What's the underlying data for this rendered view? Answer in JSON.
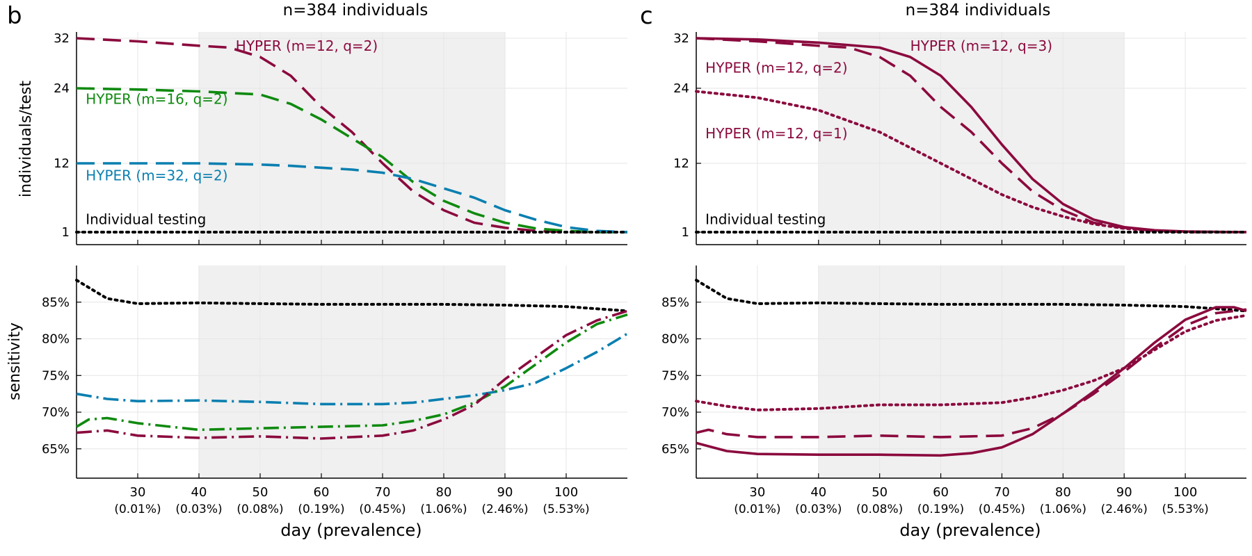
{
  "colors": {
    "red": "#8b0a3e",
    "green": "#0f8a0f",
    "blue": "#0a7fb0",
    "black": "#000000",
    "shade": "#f0f0f0",
    "grid": "#e6e6e6"
  },
  "panels": [
    {
      "letter": "b",
      "title": "n=384 individuals",
      "xlabel": "day (prevalence)"
    },
    {
      "letter": "c",
      "title": "n=384 individuals",
      "xlabel": "day (prevalence)"
    }
  ],
  "x_ticks": [
    {
      "day": 30,
      "label": "30",
      "sub": "(0.01%)"
    },
    {
      "day": 40,
      "label": "40",
      "sub": "(0.03%)"
    },
    {
      "day": 50,
      "label": "50",
      "sub": "(0.08%)"
    },
    {
      "day": 60,
      "label": "60",
      "sub": "(0.19%)"
    },
    {
      "day": 70,
      "label": "70",
      "sub": "(0.45%)"
    },
    {
      "day": 80,
      "label": "80",
      "sub": "(1.06%)"
    },
    {
      "day": 90,
      "label": "90",
      "sub": "(2.46%)"
    },
    {
      "day": 100,
      "label": "100",
      "sub": "(5.53%)"
    }
  ],
  "chart_data": [
    {
      "panel": "b-top",
      "type": "line",
      "ylabel": "individuals/test",
      "xlim": [
        20,
        110
      ],
      "ylim": [
        -1,
        33
      ],
      "yticks": [
        {
          "v": 1,
          "label": "1"
        },
        {
          "v": 12,
          "label": "12"
        },
        {
          "v": 24,
          "label": "24"
        },
        {
          "v": 32,
          "label": "32"
        }
      ],
      "shaded_x": [
        40,
        90
      ],
      "series": [
        {
          "name": "HYPER (m=12, q=2)",
          "color": "red",
          "dash": "long",
          "x": [
            20,
            30,
            40,
            45,
            50,
            55,
            60,
            65,
            70,
            75,
            80,
            85,
            90,
            95,
            100,
            105,
            110
          ],
          "y": [
            32,
            31.5,
            30.8,
            30.5,
            29,
            26,
            21,
            17,
            12,
            7.5,
            4.5,
            2.5,
            1.7,
            1.2,
            1.0,
            1.0,
            1.0
          ],
          "label_at": [
            46,
            30
          ]
        },
        {
          "name": "HYPER (m=16, q=2)",
          "color": "green",
          "dash": "long",
          "x": [
            20,
            30,
            40,
            50,
            55,
            60,
            65,
            70,
            75,
            80,
            85,
            90,
            95,
            100,
            105,
            110
          ],
          "y": [
            24,
            23.8,
            23.5,
            23,
            21.5,
            19,
            16,
            13,
            9,
            6,
            4,
            2.5,
            1.6,
            1.2,
            1.0,
            1.0
          ],
          "label_at": [
            21.5,
            21.5
          ]
        },
        {
          "name": "HYPER (m=32, q=2)",
          "color": "blue",
          "dash": "long",
          "x": [
            20,
            30,
            40,
            50,
            55,
            60,
            65,
            70,
            75,
            80,
            85,
            90,
            95,
            100,
            105,
            110
          ],
          "y": [
            12,
            12,
            12,
            11.8,
            11.6,
            11.3,
            11,
            10.5,
            9.5,
            8,
            6.5,
            4.5,
            3,
            1.8,
            1.2,
            1.0
          ],
          "label_at": [
            21.5,
            9.3
          ]
        },
        {
          "name": "Individual testing",
          "color": "black",
          "dash": "dot",
          "x": [
            20,
            110
          ],
          "y": [
            1,
            1
          ],
          "label_at": [
            21.5,
            2.3
          ]
        }
      ]
    },
    {
      "panel": "b-bottom",
      "type": "line",
      "ylabel": "sensitivity",
      "xlim": [
        20,
        110
      ],
      "ylim": [
        61,
        90
      ],
      "yticks": [
        {
          "v": 65,
          "label": "65%"
        },
        {
          "v": 70,
          "label": "70%"
        },
        {
          "v": 75,
          "label": "75%"
        },
        {
          "v": 80,
          "label": "80%"
        },
        {
          "v": 85,
          "label": "85%"
        }
      ],
      "shaded_x": [
        40,
        90
      ],
      "series": [
        {
          "name": "Individual testing",
          "color": "black",
          "dash": "dot",
          "x": [
            20,
            22,
            25,
            30,
            40,
            50,
            60,
            70,
            80,
            90,
            100,
            110
          ],
          "y": [
            88,
            87,
            85.5,
            84.8,
            84.9,
            84.8,
            84.7,
            84.7,
            84.7,
            84.6,
            84.4,
            83.8
          ]
        },
        {
          "name": "HYPER (m=32, q=2)",
          "color": "blue",
          "dash": "dashdot",
          "x": [
            20,
            25,
            30,
            40,
            50,
            60,
            70,
            75,
            80,
            85,
            90,
            95,
            100,
            105,
            110
          ],
          "y": [
            72.5,
            71.8,
            71.5,
            71.6,
            71.4,
            71.1,
            71.1,
            71.3,
            71.8,
            72.3,
            73,
            74,
            76,
            78.2,
            80.7
          ]
        },
        {
          "name": "HYPER (m=16, q=2)",
          "color": "green",
          "dash": "dashdot",
          "x": [
            20,
            22,
            25,
            30,
            40,
            50,
            60,
            70,
            75,
            80,
            85,
            90,
            95,
            100,
            105,
            110
          ],
          "y": [
            68,
            69,
            69.2,
            68.5,
            67.6,
            67.8,
            68,
            68.2,
            68.8,
            69.7,
            71.3,
            73.5,
            76.5,
            79.5,
            82,
            83.3
          ]
        },
        {
          "name": "HYPER (m=12, q=2)",
          "color": "red",
          "dash": "dashdot",
          "x": [
            20,
            25,
            30,
            40,
            50,
            60,
            70,
            75,
            80,
            85,
            90,
            95,
            100,
            105,
            110
          ],
          "y": [
            67.2,
            67.5,
            66.8,
            66.5,
            66.7,
            66.4,
            66.8,
            67.5,
            69,
            71,
            74.5,
            77.5,
            80.5,
            82.5,
            83.8
          ]
        }
      ]
    },
    {
      "panel": "c-top",
      "type": "line",
      "ylabel": "",
      "xlim": [
        20,
        110
      ],
      "ylim": [
        -1,
        33
      ],
      "yticks": [
        {
          "v": 1,
          "label": "1"
        },
        {
          "v": 12,
          "label": "12"
        },
        {
          "v": 24,
          "label": "24"
        },
        {
          "v": 32,
          "label": "32"
        }
      ],
      "shaded_x": [
        40,
        90
      ],
      "series": [
        {
          "name": "HYPER (m=12, q=3)",
          "color": "red",
          "dash": "solid",
          "x": [
            20,
            30,
            40,
            50,
            55,
            60,
            65,
            70,
            75,
            80,
            85,
            90,
            95,
            100,
            110
          ],
          "y": [
            32,
            31.8,
            31.3,
            30.5,
            29,
            26,
            21,
            15,
            9.5,
            5.5,
            3,
            1.8,
            1.3,
            1.1,
            1.0
          ],
          "label_at": [
            55,
            30
          ]
        },
        {
          "name": "HYPER (m=12, q=2)",
          "color": "red",
          "dash": "long",
          "x": [
            20,
            30,
            40,
            45,
            50,
            55,
            60,
            65,
            70,
            75,
            80,
            85,
            90,
            95,
            100,
            110
          ],
          "y": [
            32,
            31.5,
            30.8,
            30.5,
            29,
            26,
            21,
            17,
            12,
            7.5,
            4.5,
            2.5,
            1.7,
            1.2,
            1.0,
            1.0
          ],
          "label_at": [
            21.5,
            26.5
          ]
        },
        {
          "name": "HYPER (m=12, q=1)",
          "color": "red",
          "dash": "dot",
          "x": [
            20,
            30,
            40,
            50,
            55,
            60,
            65,
            70,
            75,
            80,
            85,
            90,
            95,
            100,
            110
          ],
          "y": [
            23.5,
            22.5,
            20.5,
            17,
            14.5,
            12,
            9.5,
            7,
            5,
            3.5,
            2.3,
            1.6,
            1.2,
            1.05,
            1.0
          ],
          "label_at": [
            21.5,
            16
          ]
        },
        {
          "name": "Individual testing",
          "color": "black",
          "dash": "dot",
          "x": [
            20,
            110
          ],
          "y": [
            1,
            1
          ],
          "label_at": [
            21.5,
            2.3
          ]
        }
      ]
    },
    {
      "panel": "c-bottom",
      "type": "line",
      "ylabel": "",
      "xlim": [
        20,
        110
      ],
      "ylim": [
        61,
        90
      ],
      "yticks": [
        {
          "v": 65,
          "label": "65%"
        },
        {
          "v": 70,
          "label": "70%"
        },
        {
          "v": 75,
          "label": "75%"
        },
        {
          "v": 80,
          "label": "80%"
        },
        {
          "v": 85,
          "label": "85%"
        }
      ],
      "shaded_x": [
        40,
        90
      ],
      "series": [
        {
          "name": "Individual testing",
          "color": "black",
          "dash": "dot",
          "x": [
            20,
            22,
            25,
            30,
            40,
            50,
            60,
            70,
            80,
            90,
            100,
            110
          ],
          "y": [
            88,
            87,
            85.5,
            84.8,
            84.9,
            84.8,
            84.7,
            84.7,
            84.7,
            84.6,
            84.4,
            83.8
          ]
        },
        {
          "name": "HYPER (m=12, q=1)",
          "color": "red",
          "dash": "dot",
          "x": [
            20,
            25,
            30,
            40,
            50,
            60,
            70,
            75,
            80,
            85,
            90,
            95,
            100,
            105,
            110
          ],
          "y": [
            71.5,
            70.8,
            70.3,
            70.5,
            71,
            71,
            71.3,
            72,
            73,
            74.3,
            76,
            78.5,
            81,
            82.5,
            83.2
          ]
        },
        {
          "name": "HYPER (m=12, q=2)",
          "color": "red",
          "dash": "long",
          "x": [
            20,
            22,
            25,
            30,
            40,
            50,
            60,
            70,
            75,
            80,
            85,
            90,
            95,
            100,
            105,
            110
          ],
          "y": [
            67.2,
            67.6,
            67,
            66.6,
            66.6,
            66.8,
            66.6,
            66.8,
            67.8,
            69.8,
            72.5,
            75.5,
            78.8,
            81.8,
            83.5,
            84
          ]
        },
        {
          "name": "HYPER (m=12, q=3)",
          "color": "red",
          "dash": "solid",
          "x": [
            20,
            25,
            30,
            40,
            50,
            60,
            65,
            70,
            75,
            80,
            85,
            90,
            95,
            100,
            105,
            108,
            110
          ],
          "y": [
            65.8,
            64.7,
            64.3,
            64.2,
            64.2,
            64.1,
            64.4,
            65.2,
            67,
            69.8,
            72.8,
            76,
            79.5,
            82.6,
            84.3,
            84.3,
            83.8
          ]
        }
      ]
    }
  ]
}
